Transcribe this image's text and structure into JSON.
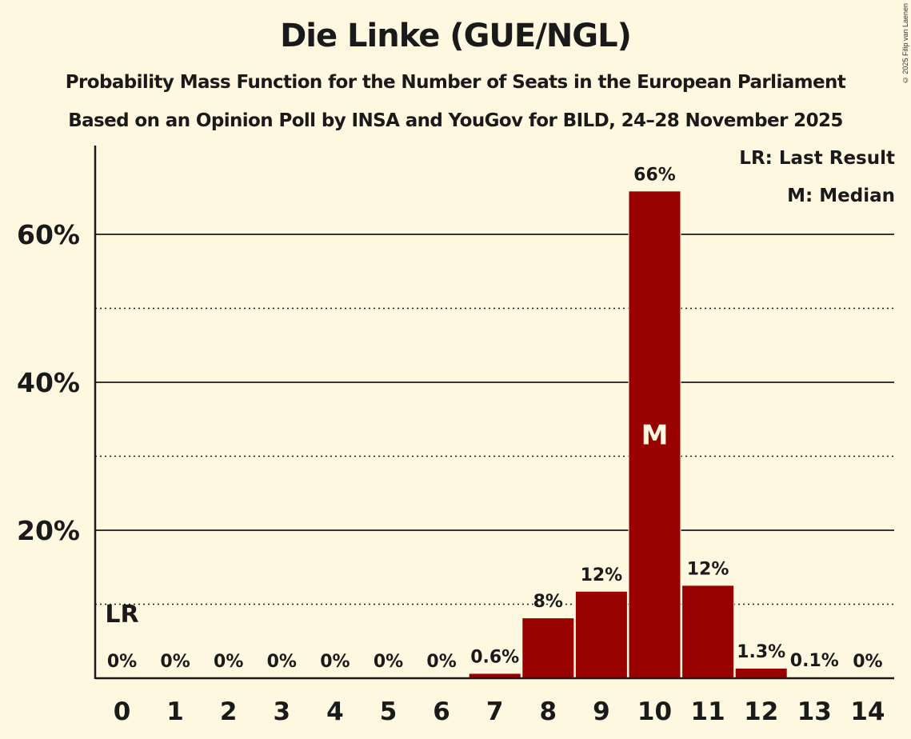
{
  "header": {
    "title": "Die Linke (GUE/NGL)",
    "subtitle1": "Probability Mass Function for the Number of Seats in the European Parliament",
    "subtitle2": "Based on an Opinion Poll by INSA and YouGov for BILD, 24–28 November 2025",
    "copyright": "© 2025 Filip van Laenen"
  },
  "legend": {
    "last_result": "LR: Last Result",
    "median": "M: Median"
  },
  "colors": {
    "background": "#fff8e1",
    "bar": "#990000",
    "text": "#1a1a1a"
  },
  "chart_data": {
    "type": "bar",
    "title": "Die Linke (GUE/NGL)",
    "subtitle": "Probability Mass Function for the Number of Seats in the European Parliament — Based on an Opinion Poll by INSA and YouGov for BILD, 24–28 November 2025",
    "xlabel": "",
    "ylabel": "",
    "categories": [
      "0",
      "1",
      "2",
      "3",
      "4",
      "5",
      "6",
      "7",
      "8",
      "9",
      "10",
      "11",
      "12",
      "13",
      "14"
    ],
    "values": [
      0,
      0,
      0,
      0,
      0,
      0,
      0,
      0.6,
      8.1,
      11.7,
      65.8,
      12.5,
      1.3,
      0.1,
      0
    ],
    "labels": [
      "0%",
      "0%",
      "0%",
      "0%",
      "0%",
      "0%",
      "0%",
      "0.6%",
      "8%",
      "12%",
      "66%",
      "12%",
      "1.3%",
      "0.1%",
      "0%"
    ],
    "ylim": [
      0,
      72
    ],
    "yticks": [
      20,
      40,
      60
    ],
    "ytick_labels": [
      "20%",
      "40%",
      "60%"
    ],
    "minor_gridlines": [
      10,
      30,
      50
    ],
    "grid": true,
    "annotations": [
      {
        "category": "0",
        "text": "LR",
        "meaning": "Last Result"
      },
      {
        "category": "10",
        "text": "M",
        "meaning": "Median"
      }
    ],
    "legend_position": "top-right"
  }
}
